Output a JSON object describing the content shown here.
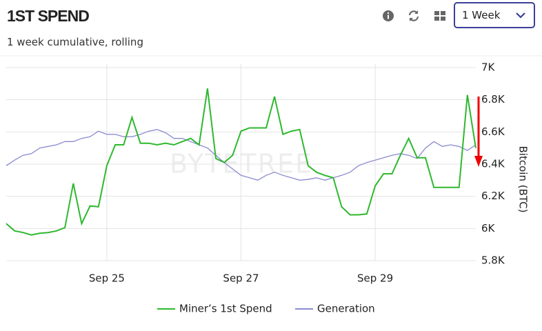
{
  "header": {
    "title": "1ST SPEND",
    "subtitle": "1 week cumulative, rolling"
  },
  "controls": {
    "period": "1 Week"
  },
  "chart_data": {
    "type": "line",
    "watermark": "BYTETREE",
    "y_label": "Bitcoin (BTC)",
    "categories": [
      null,
      null,
      null,
      null,
      null,
      null,
      null,
      null,
      null,
      null,
      null,
      null,
      "Sep 25",
      null,
      null,
      null,
      null,
      null,
      null,
      null,
      null,
      null,
      null,
      null,
      null,
      null,
      null,
      null,
      "Sep 27",
      null,
      null,
      null,
      null,
      null,
      null,
      null,
      null,
      null,
      null,
      null,
      null,
      null,
      null,
      null,
      "Sep 29",
      null,
      null,
      null,
      null,
      null,
      null,
      null,
      null,
      null,
      null,
      null,
      null
    ],
    "series": [
      {
        "name": "Miner’s 1st Spend",
        "color": "#2db82d",
        "values": [
          6030,
          5985,
          5975,
          5960,
          5970,
          5975,
          5985,
          6005,
          6280,
          6030,
          6140,
          6135,
          6390,
          6520,
          6520,
          6690,
          6530,
          6530,
          6520,
          6530,
          6520,
          6540,
          6560,
          6520,
          6870,
          6435,
          6410,
          6455,
          6605,
          6625,
          6625,
          6625,
          6820,
          6585,
          6605,
          6615,
          6390,
          6350,
          6330,
          6315,
          6135,
          6085,
          6085,
          6090,
          6265,
          6340,
          6340,
          6455,
          6560,
          6440,
          6440,
          6255,
          6255,
          6255,
          6255,
          6830,
          6500
        ]
      },
      {
        "name": "Generation",
        "color": "#8a8ad0",
        "values": [
          6390,
          6425,
          6455,
          6465,
          6500,
          6510,
          6520,
          6540,
          6540,
          6560,
          6570,
          6605,
          6585,
          6585,
          6570,
          6570,
          6585,
          6605,
          6615,
          6595,
          6560,
          6560,
          6540,
          6520,
          6500,
          6455,
          6410,
          6370,
          6330,
          6315,
          6300,
          6330,
          6350,
          6330,
          6315,
          6300,
          6305,
          6315,
          6300,
          6315,
          6330,
          6350,
          6390,
          6410,
          6425,
          6440,
          6455,
          6465,
          6455,
          6435,
          6500,
          6540,
          6510,
          6520,
          6510,
          6485,
          6520
        ]
      }
    ],
    "ylim": [
      5800,
      7000
    ],
    "yticks": [
      {
        "value": 5800,
        "label": "5.8K"
      },
      {
        "value": 6000,
        "label": "6K"
      },
      {
        "value": 6200,
        "label": "6.2K"
      },
      {
        "value": 6400,
        "label": "6.4K"
      },
      {
        "value": 6600,
        "label": "6.6K"
      },
      {
        "value": 6800,
        "label": "6.8K"
      },
      {
        "value": 7000,
        "label": "7K"
      }
    ],
    "grid": true
  }
}
